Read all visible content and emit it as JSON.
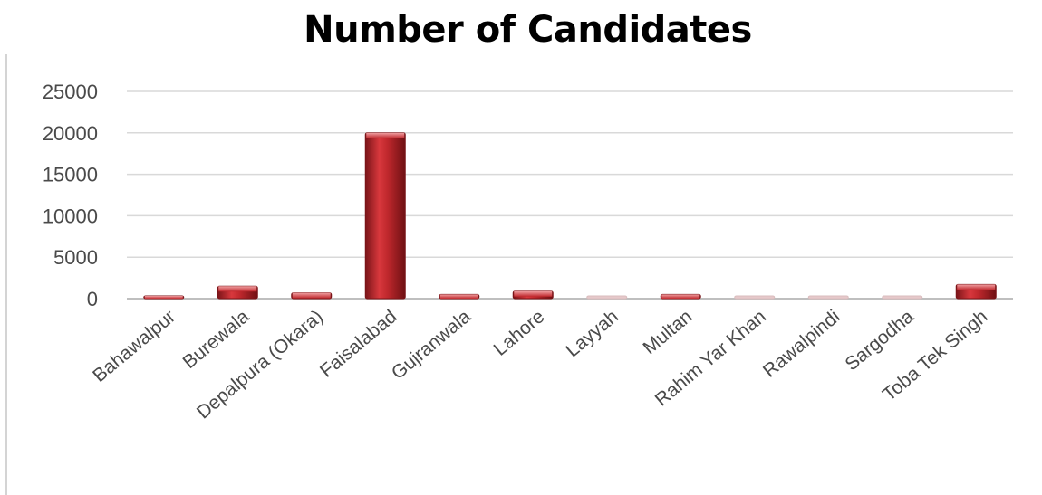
{
  "chart_data": {
    "type": "bar",
    "title": "Number of Candidates",
    "xlabel": "",
    "ylabel": "",
    "ylim": [
      0,
      25000
    ],
    "y_ticks": [
      "0",
      "5000",
      "10000",
      "15000",
      "20000",
      "25000"
    ],
    "categories": [
      "Bahawalpur",
      "Burewala",
      "Depalpura (Okara)",
      "Faisalabad",
      "Gujranwala",
      "Lahore",
      "Layyah",
      "Multan",
      "Rahim Yar Khan",
      "Rawalpindi",
      "Sargodha",
      "Toba Tek Singh"
    ],
    "values": [
      200,
      1500,
      700,
      20000,
      500,
      900,
      50,
      500,
      50,
      50,
      50,
      1700
    ],
    "grid": true,
    "legend": "none",
    "colors": {
      "bar": "#c0282d",
      "bar_dark": "#7a1418",
      "bar_light": "#e8777a",
      "grid": "#d9d9d9",
      "axis": "#bfbfbf"
    }
  }
}
